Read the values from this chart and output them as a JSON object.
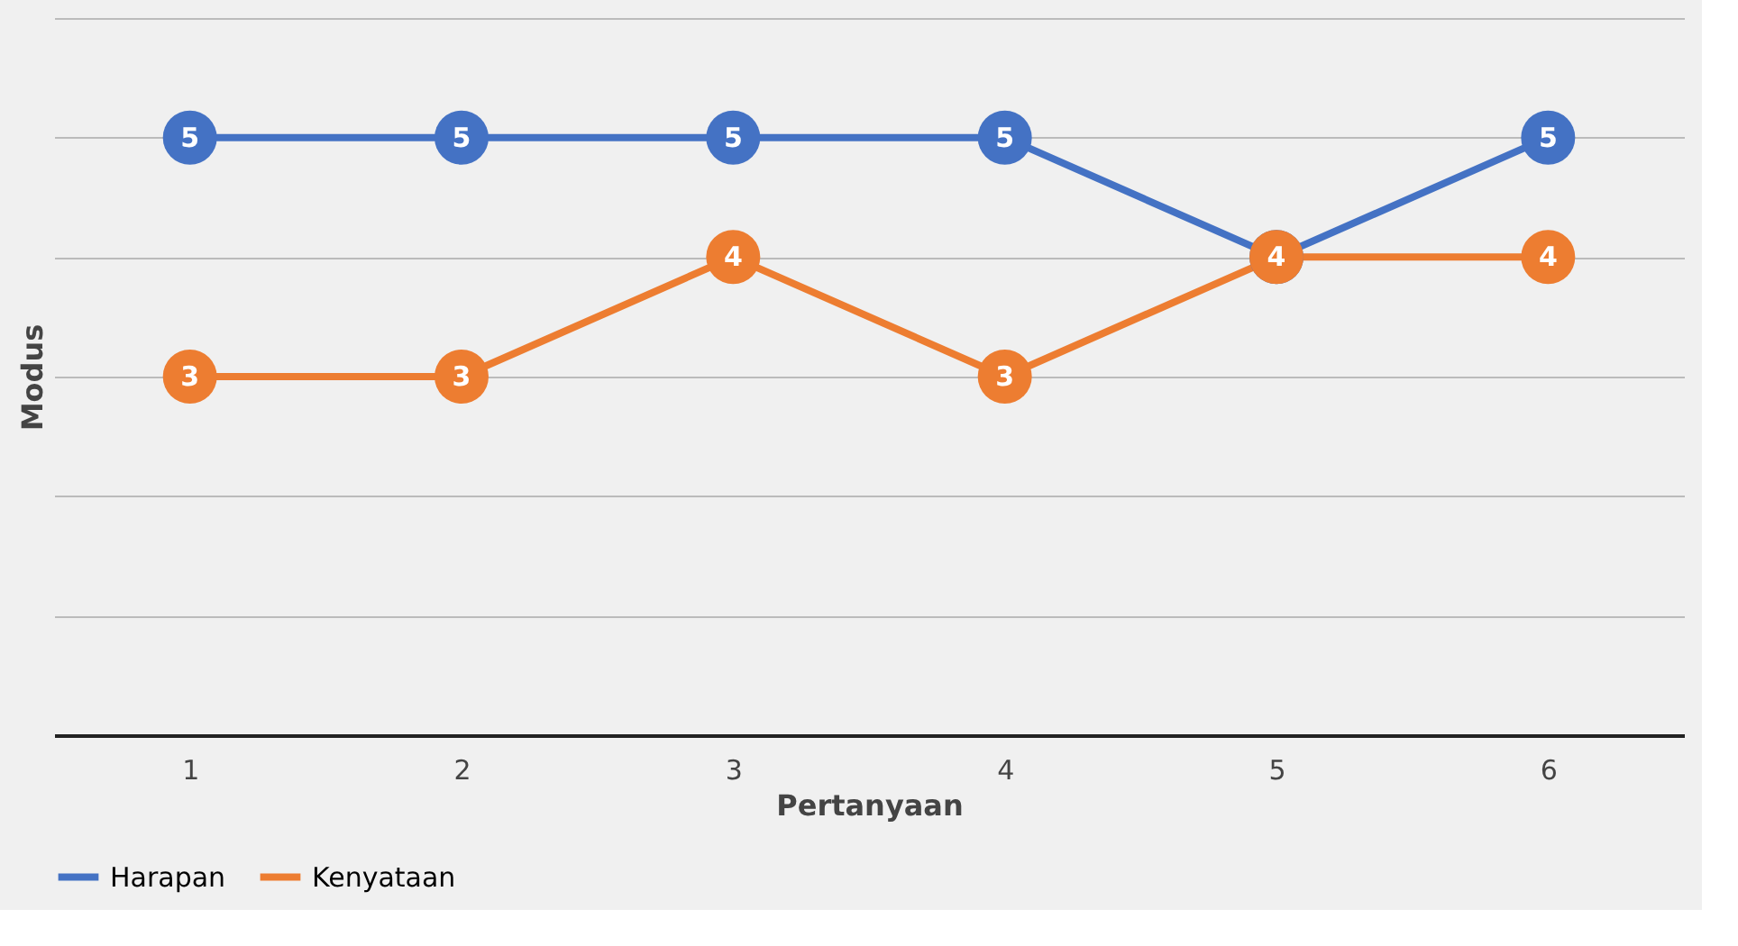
{
  "chart_data": {
    "type": "line",
    "xlabel": "Pertanyaan",
    "ylabel": "Modus",
    "categories": [
      "1",
      "2",
      "3",
      "4",
      "5",
      "6"
    ],
    "series": [
      {
        "name": "Harapan",
        "color": "#4472c4",
        "values": [
          5,
          5,
          5,
          5,
          4,
          5
        ],
        "value_labels": [
          "5",
          "5",
          "5",
          "5",
          null,
          "5"
        ]
      },
      {
        "name": "Kenyataan",
        "color": "#ed7d31",
        "values": [
          3,
          3,
          4,
          3,
          4,
          4
        ],
        "value_labels": [
          "3",
          "3",
          "4",
          "3",
          "4",
          "4"
        ]
      }
    ],
    "ylim": [
      0,
      6
    ],
    "yticks": [
      {
        "value": 0,
        "label": null
      },
      {
        "value": 1,
        "label": null
      },
      {
        "value": 2,
        "label": null
      },
      {
        "value": 3,
        "label": null
      },
      {
        "value": 4,
        "label": null
      },
      {
        "value": 5,
        "label": null
      },
      {
        "value": 6,
        "label": null
      }
    ],
    "tick_labels": "x",
    "grid": "y",
    "legend": "bottom",
    "marker": "circle",
    "line_style": "solid"
  }
}
